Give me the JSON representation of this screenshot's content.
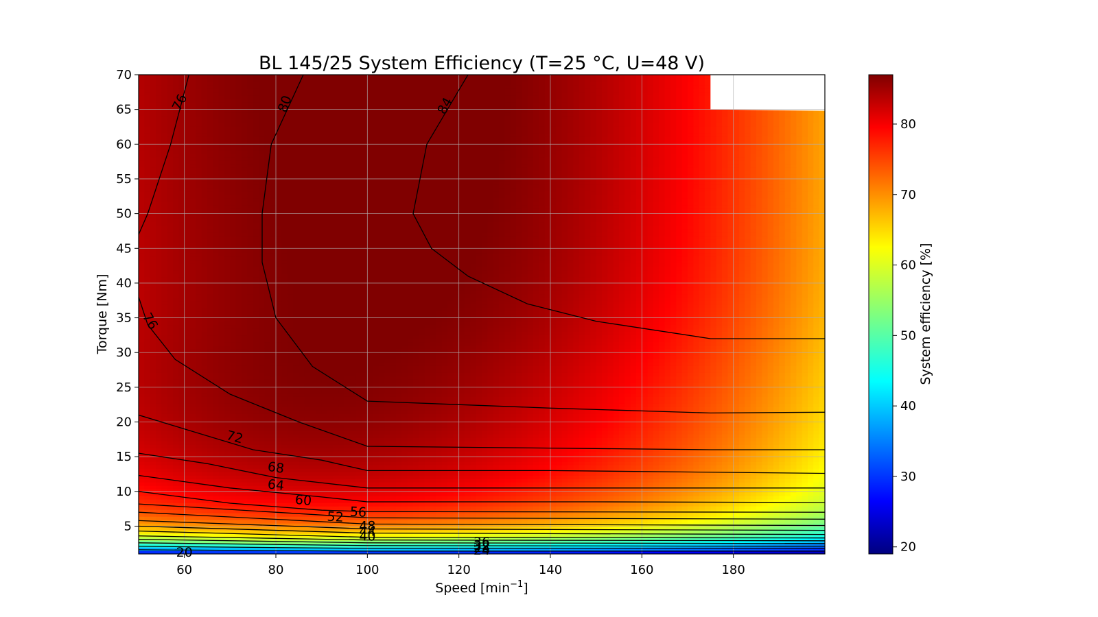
{
  "chart_data": {
    "type": "heatmap",
    "subtype": "filled-contour",
    "title": "BL 145/25 System Efficiency (T=25 °C, U=48 V)",
    "xlabel": "Speed  [min",
    "xlabel_sup": "−1",
    "xlabel_end": "]",
    "ylabel": "Torque [Nm]",
    "colorbar_label": "System efficiency [%]",
    "colormap": "jet",
    "xlim": [
      50,
      200
    ],
    "ylim": [
      1,
      70
    ],
    "clim": [
      19,
      87
    ],
    "grid": true,
    "x_ticks": [
      60,
      80,
      100,
      120,
      140,
      160,
      180
    ],
    "y_ticks": [
      5,
      10,
      15,
      20,
      25,
      30,
      35,
      40,
      45,
      50,
      55,
      60,
      65,
      70
    ],
    "colorbar_ticks": [
      20,
      30,
      40,
      50,
      60,
      70,
      80
    ],
    "max_torque_envelope": [
      {
        "speed": 50,
        "torque": 70
      },
      {
        "speed": 175,
        "torque": 70
      },
      {
        "speed": 175,
        "torque": 65
      },
      {
        "speed": 200,
        "torque": 64.8
      }
    ],
    "contour_lines": [
      {
        "level": 84,
        "points": [
          [
            122,
            70
          ],
          [
            113,
            60
          ],
          [
            110,
            50
          ],
          [
            114,
            45
          ],
          [
            122,
            41
          ],
          [
            135,
            37
          ],
          [
            150,
            34.5
          ],
          [
            175,
            32
          ],
          [
            200,
            32
          ]
        ]
      },
      {
        "level": 80,
        "points": [
          [
            86,
            70
          ],
          [
            79,
            60
          ],
          [
            77,
            50
          ],
          [
            77,
            43
          ],
          [
            80,
            35
          ],
          [
            88,
            28
          ],
          [
            100,
            23
          ],
          [
            140,
            22
          ],
          [
            175,
            21.3
          ],
          [
            200,
            21.4
          ]
        ]
      },
      {
        "level": 76,
        "points": [
          [
            61,
            70
          ],
          [
            57,
            60
          ],
          [
            52,
            50
          ],
          [
            50,
            47
          ]
        ]
      },
      {
        "level": 76,
        "points": [
          [
            50,
            38
          ],
          [
            52,
            34
          ],
          [
            58,
            29
          ],
          [
            70,
            24
          ],
          [
            85,
            20
          ],
          [
            100,
            16.5
          ],
          [
            175,
            16
          ],
          [
            200,
            16
          ]
        ]
      },
      {
        "level": 72,
        "points": [
          [
            50,
            21
          ],
          [
            60,
            19
          ],
          [
            75,
            16
          ],
          [
            90,
            14.5
          ],
          [
            100,
            13
          ],
          [
            140,
            13
          ],
          [
            200,
            12.6
          ]
        ]
      },
      {
        "level": 68,
        "points": [
          [
            50,
            15.5
          ],
          [
            65,
            14
          ],
          [
            80,
            12
          ],
          [
            100,
            10.5
          ],
          [
            150,
            10.5
          ],
          [
            200,
            10.5
          ]
        ]
      },
      {
        "level": 64,
        "points": [
          [
            50,
            12.3
          ],
          [
            70,
            10.5
          ],
          [
            90,
            9.2
          ],
          [
            100,
            8.5
          ],
          [
            150,
            8.5
          ],
          [
            200,
            8.4
          ]
        ]
      },
      {
        "level": 60,
        "points": [
          [
            50,
            10
          ],
          [
            70,
            8.3
          ],
          [
            90,
            7.3
          ],
          [
            100,
            7.1
          ],
          [
            200,
            7.0
          ]
        ]
      },
      {
        "level": 56,
        "points": [
          [
            50,
            8.2
          ],
          [
            100,
            6.2
          ],
          [
            200,
            6.0
          ]
        ]
      },
      {
        "level": 52,
        "points": [
          [
            50,
            7
          ],
          [
            100,
            5.3
          ],
          [
            200,
            5.1
          ]
        ]
      },
      {
        "level": 48,
        "points": [
          [
            50,
            5.8
          ],
          [
            100,
            4.6
          ],
          [
            200,
            4.4
          ]
        ]
      },
      {
        "level": 44,
        "points": [
          [
            50,
            5.0
          ],
          [
            100,
            4.0
          ],
          [
            200,
            3.8
          ]
        ]
      },
      {
        "level": 40,
        "points": [
          [
            50,
            4.3
          ],
          [
            100,
            3.4
          ],
          [
            200,
            3.3
          ]
        ]
      },
      {
        "level": 36,
        "points": [
          [
            50,
            3.6
          ],
          [
            100,
            3.0
          ],
          [
            200,
            2.9
          ]
        ]
      },
      {
        "level": 32,
        "points": [
          [
            50,
            3.1
          ],
          [
            100,
            2.6
          ],
          [
            200,
            2.5
          ]
        ]
      },
      {
        "level": 28,
        "points": [
          [
            50,
            2.6
          ],
          [
            100,
            2.2
          ],
          [
            200,
            2.1
          ]
        ]
      },
      {
        "level": 24,
        "points": [
          [
            50,
            2.1
          ],
          [
            100,
            1.8
          ],
          [
            200,
            1.8
          ]
        ]
      },
      {
        "level": 20,
        "points": [
          [
            50,
            1.6
          ],
          [
            100,
            1.4
          ],
          [
            200,
            1.4
          ]
        ]
      }
    ],
    "contour_labels": [
      {
        "text": "76",
        "x": 59,
        "y": 66,
        "angle": -63
      },
      {
        "text": "80",
        "x": 82,
        "y": 65.8,
        "angle": -70
      },
      {
        "text": "84",
        "x": 117,
        "y": 65.5,
        "angle": -62
      },
      {
        "text": "76",
        "x": 52.5,
        "y": 34.5,
        "angle": 60
      },
      {
        "text": "72",
        "x": 71,
        "y": 17.8,
        "angle": 15
      },
      {
        "text": "68",
        "x": 80,
        "y": 13.4,
        "angle": 8
      },
      {
        "text": "64",
        "x": 80,
        "y": 10.9,
        "angle": 6
      },
      {
        "text": "60",
        "x": 86,
        "y": 8.7,
        "angle": 5
      },
      {
        "text": "56",
        "x": 98,
        "y": 7.0,
        "angle": 3
      },
      {
        "text": "52",
        "x": 93,
        "y": 6.3,
        "angle": 3
      },
      {
        "text": "48",
        "x": 100,
        "y": 5.0,
        "angle": 0
      },
      {
        "text": "44",
        "x": 100,
        "y": 4.2,
        "angle": 0
      },
      {
        "text": "40",
        "x": 100,
        "y": 3.5,
        "angle": 0
      },
      {
        "text": "36",
        "x": 125,
        "y": 2.7,
        "angle": 0
      },
      {
        "text": "32",
        "x": 125,
        "y": 2.2,
        "angle": 0
      },
      {
        "text": "28",
        "x": 125,
        "y": 1.9,
        "angle": 0
      },
      {
        "text": "24",
        "x": 125,
        "y": 1.5,
        "angle": 0
      },
      {
        "text": "20",
        "x": 60,
        "y": 1.2,
        "angle": 0
      }
    ]
  }
}
